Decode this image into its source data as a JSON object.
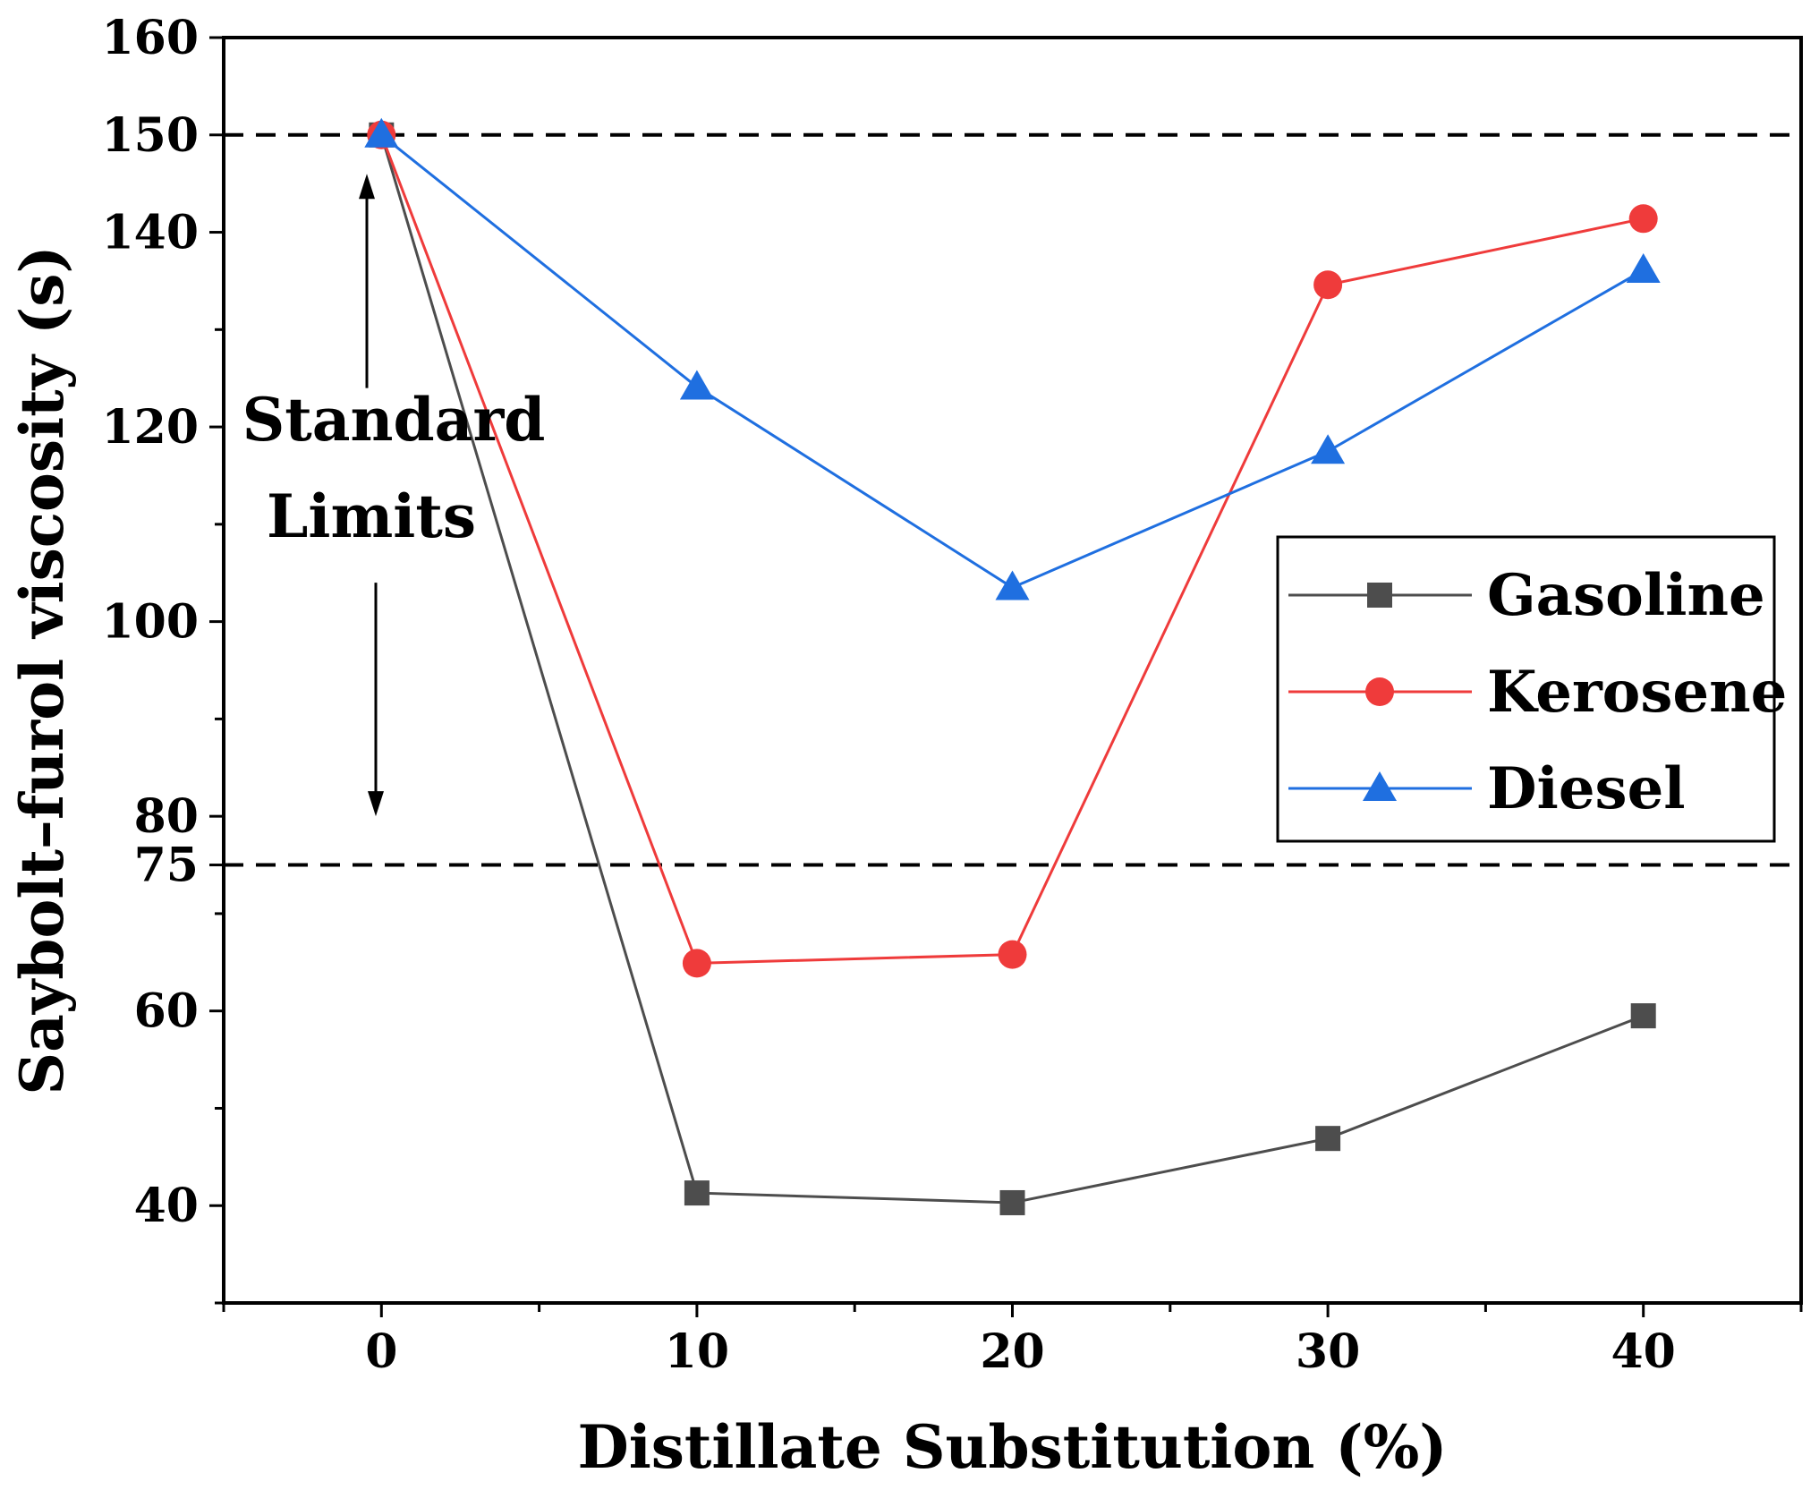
{
  "chart_data": {
    "type": "line",
    "title": "",
    "xlabel": "Distillate Substitution (%)",
    "ylabel": "Saybolt–furol viscosity (s)",
    "xlim": [
      -5,
      45
    ],
    "ylim": [
      30,
      160
    ],
    "x_ticks": [
      0,
      10,
      20,
      30,
      40
    ],
    "x_tick_labels": [
      "0",
      "10",
      "20",
      "30",
      "40"
    ],
    "x_minor_ticks": [
      -5,
      5,
      15,
      25,
      35,
      45
    ],
    "y_ticks": [
      40,
      60,
      75,
      80,
      100,
      120,
      140,
      150,
      160
    ],
    "y_tick_labels": [
      "40",
      "60",
      "75",
      "80",
      "100",
      "120",
      "140",
      "150",
      "160"
    ],
    "y_minor_ticks": [
      30,
      50,
      70,
      90,
      110,
      130
    ],
    "grid": false,
    "legend_position": "right",
    "reference_lines": [
      {
        "axis": "y",
        "value": 150,
        "style": "dashed",
        "color": "#000000"
      },
      {
        "axis": "y",
        "value": 75,
        "style": "dashed",
        "color": "#000000"
      }
    ],
    "annotations": {
      "text_line1": "Standard",
      "text_line2": "Limits",
      "arrow_up_from": 124,
      "arrow_up_to": 146,
      "arrow_down_from": 104,
      "arrow_down_to": 80
    },
    "x": [
      0,
      10,
      20,
      30,
      40
    ],
    "series": [
      {
        "name": "Gasoline",
        "marker": "square",
        "color": "#4d4d4d",
        "values": [
          150,
          41.3,
          40.3,
          46.9,
          59.5
        ]
      },
      {
        "name": "Kerosene",
        "marker": "circle",
        "color": "#ef3b3b",
        "values": [
          150,
          64.9,
          65.8,
          134.6,
          141.4
        ]
      },
      {
        "name": "Diesel",
        "marker": "triangle",
        "color": "#1f6fe0",
        "values": [
          150,
          124.1,
          103.5,
          117.5,
          136.1
        ]
      }
    ]
  }
}
